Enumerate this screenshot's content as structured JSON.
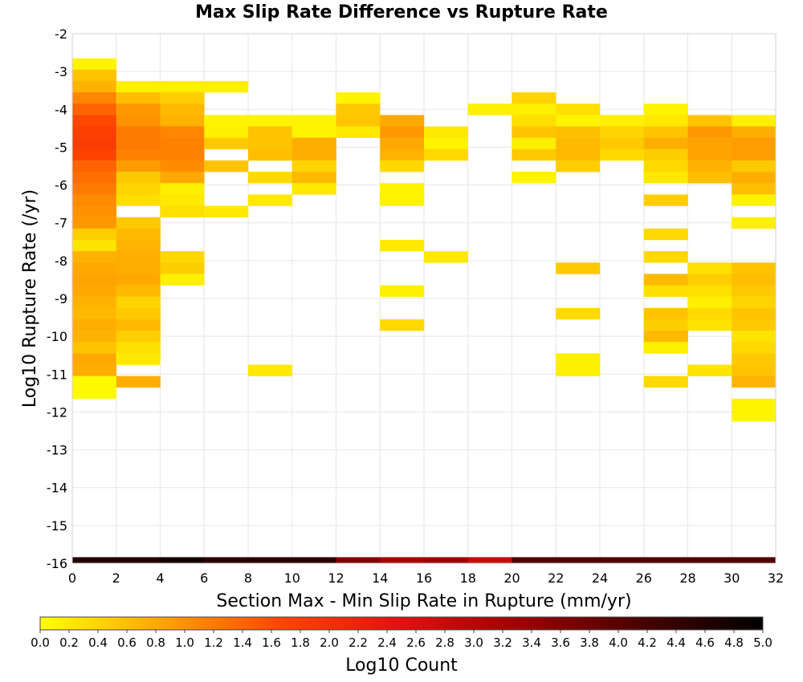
{
  "chart_data": {
    "type": "heatmap",
    "title": "Max Slip Rate Difference vs Rupture Rate",
    "xlabel": "Section Max - Min Slip Rate in Rupture (mm/yr)",
    "ylabel": "Log10 Rupture Rate (/yr)",
    "xlim": [
      0,
      32
    ],
    "ylim": [
      -16,
      -2
    ],
    "x_ticks": [
      0,
      2,
      4,
      6,
      8,
      10,
      12,
      14,
      16,
      18,
      20,
      22,
      24,
      26,
      28,
      30,
      32
    ],
    "y_ticks": [
      -2,
      -3,
      -4,
      -5,
      -6,
      -7,
      -8,
      -9,
      -10,
      -11,
      -12,
      -13,
      -14,
      -15,
      -16
    ],
    "grid": true,
    "x_bin_width": 2,
    "y_bin_height": 0.3,
    "colorbar": {
      "label": "Log10 Count",
      "range": [
        0,
        5
      ],
      "ticks": [
        "0.0",
        "0.2",
        "0.4",
        "0.6",
        "0.8",
        "1.0",
        "1.2",
        "1.4",
        "1.6",
        "1.8",
        "2.0",
        "2.2",
        "2.4",
        "2.6",
        "2.8",
        "3.0",
        "3.2",
        "3.4",
        "3.6",
        "3.8",
        "4.0",
        "4.2",
        "4.4",
        "4.6",
        "4.8",
        "5.0"
      ],
      "colors": [
        "#ffff00",
        "#ffa500",
        "#ff4500",
        "#e31010",
        "#9c0000",
        "#4a0000",
        "#000000"
      ]
    },
    "columns": [
      {
        "x": 0,
        "cells": [
          [
            -2.8,
            0.1
          ],
          [
            -3.1,
            0.55
          ],
          [
            -3.4,
            0.7
          ],
          [
            -3.7,
            1.1
          ],
          [
            -4.0,
            1.4
          ],
          [
            -4.3,
            1.65
          ],
          [
            -4.6,
            1.75
          ],
          [
            -4.9,
            1.8
          ],
          [
            -5.2,
            1.7
          ],
          [
            -5.5,
            1.4
          ],
          [
            -5.8,
            1.3
          ],
          [
            -6.1,
            1.2
          ],
          [
            -6.4,
            1.05
          ],
          [
            -6.7,
            1.0
          ],
          [
            -7.0,
            0.95
          ],
          [
            -7.3,
            0.45
          ],
          [
            -7.6,
            0.25
          ],
          [
            -7.9,
            0.7
          ],
          [
            -8.2,
            0.8
          ],
          [
            -8.5,
            0.85
          ],
          [
            -8.8,
            0.8
          ],
          [
            -9.1,
            0.7
          ],
          [
            -9.4,
            0.65
          ],
          [
            -9.7,
            0.75
          ],
          [
            -10.0,
            0.7
          ],
          [
            -10.3,
            0.55
          ],
          [
            -10.6,
            0.8
          ],
          [
            -10.9,
            0.75
          ],
          [
            -11.2,
            0.05
          ],
          [
            -11.5,
            0.05
          ]
        ]
      },
      {
        "x": 2,
        "cells": [
          [
            -3.4,
            0.15
          ],
          [
            -3.7,
            0.6
          ],
          [
            -4.0,
            0.95
          ],
          [
            -4.3,
            1.0
          ],
          [
            -4.6,
            1.2
          ],
          [
            -4.9,
            1.2
          ],
          [
            -5.2,
            1.15
          ],
          [
            -5.5,
            0.9
          ],
          [
            -5.8,
            0.5
          ],
          [
            -6.1,
            0.4
          ],
          [
            -6.4,
            0.3
          ],
          [
            -7.0,
            0.5
          ],
          [
            -7.3,
            0.65
          ],
          [
            -7.6,
            0.7
          ],
          [
            -7.9,
            0.75
          ],
          [
            -8.2,
            0.75
          ],
          [
            -8.5,
            0.8
          ],
          [
            -8.8,
            0.65
          ],
          [
            -9.1,
            0.4
          ],
          [
            -9.4,
            0.5
          ],
          [
            -9.7,
            0.65
          ],
          [
            -10.0,
            0.45
          ],
          [
            -10.3,
            0.3
          ],
          [
            -10.6,
            0.2
          ],
          [
            -11.2,
            0.75
          ]
        ]
      },
      {
        "x": 4,
        "cells": [
          [
            -3.4,
            0.15
          ],
          [
            -3.7,
            0.45
          ],
          [
            -4.0,
            0.65
          ],
          [
            -4.3,
            0.7
          ],
          [
            -4.6,
            1.1
          ],
          [
            -4.9,
            1.15
          ],
          [
            -5.2,
            1.15
          ],
          [
            -5.5,
            1.05
          ],
          [
            -5.8,
            0.8
          ],
          [
            -6.1,
            0.15
          ],
          [
            -6.4,
            0.2
          ],
          [
            -6.7,
            0.3
          ],
          [
            -7.9,
            0.35
          ],
          [
            -8.2,
            0.45
          ],
          [
            -8.5,
            0.15
          ]
        ]
      },
      {
        "x": 6,
        "cells": [
          [
            -3.4,
            0.15
          ],
          [
            -4.3,
            0.1
          ],
          [
            -4.6,
            0.15
          ],
          [
            -4.9,
            0.5
          ],
          [
            -5.5,
            0.55
          ],
          [
            -6.7,
            0.2
          ]
        ]
      },
      {
        "x": 8,
        "cells": [
          [
            -4.3,
            0.1
          ],
          [
            -4.6,
            0.55
          ],
          [
            -4.9,
            0.55
          ],
          [
            -5.2,
            0.6
          ],
          [
            -5.8,
            0.35
          ],
          [
            -6.4,
            0.2
          ],
          [
            -10.9,
            0.2
          ]
        ]
      },
      {
        "x": 10,
        "cells": [
          [
            -4.3,
            0.1
          ],
          [
            -4.6,
            0.1
          ],
          [
            -4.9,
            0.75
          ],
          [
            -5.2,
            0.75
          ],
          [
            -5.5,
            0.4
          ],
          [
            -5.8,
            0.65
          ],
          [
            -6.1,
            0.2
          ]
        ]
      },
      {
        "x": 12,
        "cells": [
          [
            -3.7,
            0.1
          ],
          [
            -4.0,
            0.5
          ],
          [
            -4.3,
            0.55
          ],
          [
            -4.6,
            0.2
          ]
        ]
      },
      {
        "x": 14,
        "cells": [
          [
            -4.3,
            0.8
          ],
          [
            -4.6,
            0.95
          ],
          [
            -4.9,
            0.8
          ],
          [
            -5.2,
            0.7
          ],
          [
            -5.5,
            0.35
          ],
          [
            -6.1,
            0.1
          ],
          [
            -6.4,
            0.1
          ],
          [
            -7.6,
            0.2
          ],
          [
            -8.8,
            0.15
          ],
          [
            -9.7,
            0.35
          ]
        ]
      },
      {
        "x": 16,
        "cells": [
          [
            -4.6,
            0.2
          ],
          [
            -4.9,
            0.1
          ],
          [
            -5.2,
            0.35
          ],
          [
            -7.9,
            0.2
          ]
        ]
      },
      {
        "x": 18,
        "cells": [
          [
            -4.0,
            0.15
          ]
        ]
      },
      {
        "x": 20,
        "cells": [
          [
            -3.7,
            0.4
          ],
          [
            -4.0,
            0.15
          ],
          [
            -4.3,
            0.3
          ],
          [
            -4.6,
            0.55
          ],
          [
            -4.9,
            0.15
          ],
          [
            -5.2,
            0.5
          ],
          [
            -5.8,
            0.1
          ]
        ]
      },
      {
        "x": 22,
        "cells": [
          [
            -4.0,
            0.3
          ],
          [
            -4.3,
            0.1
          ],
          [
            -4.6,
            0.6
          ],
          [
            -4.9,
            0.65
          ],
          [
            -5.2,
            0.65
          ],
          [
            -5.5,
            0.45
          ],
          [
            -8.2,
            0.5
          ],
          [
            -9.4,
            0.35
          ],
          [
            -10.6,
            0.15
          ],
          [
            -10.9,
            0.15
          ]
        ]
      },
      {
        "x": 24,
        "cells": [
          [
            -4.3,
            0.15
          ],
          [
            -4.6,
            0.4
          ],
          [
            -4.9,
            0.5
          ],
          [
            -5.2,
            0.35
          ]
        ]
      },
      {
        "x": 26,
        "cells": [
          [
            -4.0,
            0.1
          ],
          [
            -4.3,
            0.2
          ],
          [
            -4.6,
            0.55
          ],
          [
            -4.9,
            0.75
          ],
          [
            -5.2,
            0.45
          ],
          [
            -5.5,
            0.35
          ],
          [
            -5.8,
            0.2
          ],
          [
            -6.4,
            0.45
          ],
          [
            -7.3,
            0.35
          ],
          [
            -7.9,
            0.35
          ],
          [
            -8.5,
            0.65
          ],
          [
            -8.8,
            0.3
          ],
          [
            -9.4,
            0.55
          ],
          [
            -9.7,
            0.45
          ],
          [
            -10.0,
            0.65
          ],
          [
            -10.3,
            0.15
          ],
          [
            -11.2,
            0.35
          ]
        ]
      },
      {
        "x": 28,
        "cells": [
          [
            -4.3,
            0.55
          ],
          [
            -4.6,
            0.95
          ],
          [
            -4.9,
            0.85
          ],
          [
            -5.2,
            0.85
          ],
          [
            -5.5,
            0.7
          ],
          [
            -5.8,
            0.6
          ],
          [
            -8.2,
            0.3
          ],
          [
            -8.5,
            0.45
          ],
          [
            -8.8,
            0.3
          ],
          [
            -9.1,
            0.15
          ],
          [
            -9.4,
            0.35
          ],
          [
            -9.7,
            0.25
          ],
          [
            -10.9,
            0.25
          ]
        ]
      },
      {
        "x": 30,
        "cells": [
          [
            -4.3,
            0.15
          ],
          [
            -4.6,
            0.75
          ],
          [
            -4.9,
            0.9
          ],
          [
            -5.2,
            0.9
          ],
          [
            -5.5,
            0.5
          ],
          [
            -5.8,
            0.75
          ],
          [
            -6.1,
            0.6
          ],
          [
            -6.4,
            0.1
          ],
          [
            -7.0,
            0.15
          ],
          [
            -8.2,
            0.55
          ],
          [
            -8.5,
            0.6
          ],
          [
            -8.8,
            0.5
          ],
          [
            -9.1,
            0.4
          ],
          [
            -9.4,
            0.55
          ],
          [
            -9.7,
            0.5
          ],
          [
            -10.0,
            0.25
          ],
          [
            -10.3,
            0.35
          ],
          [
            -10.6,
            0.5
          ],
          [
            -10.9,
            0.55
          ],
          [
            -11.2,
            0.7
          ],
          [
            -11.8,
            0.1
          ],
          [
            -12.1,
            0.1
          ]
        ]
      }
    ],
    "bottom_row": {
      "y": -16,
      "values": [
        4.6,
        4.6,
        4.8,
        4.5,
        4.5,
        4.5,
        3.6,
        3.2,
        3.3,
        2.8,
        4.1,
        4.1,
        4.1,
        4.1,
        4.1,
        4.1
      ]
    }
  }
}
